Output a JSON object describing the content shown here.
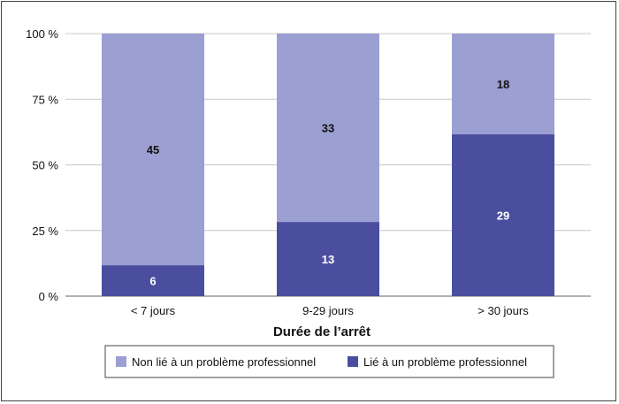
{
  "chart_data": {
    "type": "bar",
    "stacked": true,
    "normalized_percent": true,
    "categories": [
      "< 7 jours",
      "9-29 jours",
      "> 30 jours"
    ],
    "series": [
      {
        "name": "Lié à un problème professionnel",
        "values": [
          6,
          13,
          29
        ],
        "color": "#4b4e9f"
      },
      {
        "name": "Non lié à un problème professionnel",
        "values": [
          45,
          33,
          18
        ],
        "color": "#9c9fd2"
      }
    ],
    "xlabel": "Durée de l’arrêt",
    "ylabel": "",
    "ylim": [
      0,
      100
    ],
    "yticks": [
      "0 %",
      "25 %",
      "50 %",
      "75 %",
      "100 %"
    ],
    "grid": true,
    "legend_position": "bottom",
    "legend": [
      {
        "label": "Non lié à un problème professionnel",
        "color": "#9c9fd2"
      },
      {
        "label": "Lié à un problème professionnel",
        "color": "#4b4e9f"
      }
    ]
  }
}
